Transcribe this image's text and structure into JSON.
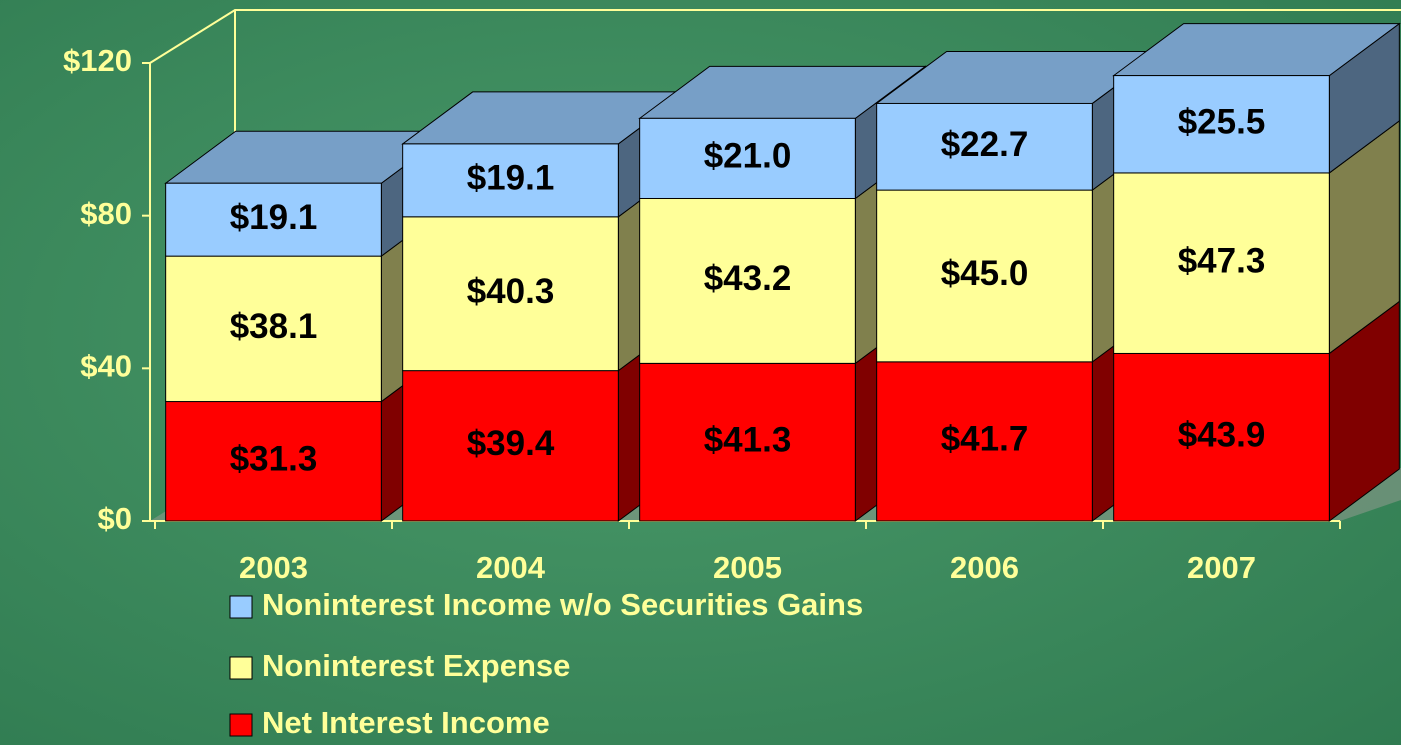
{
  "chart_data": {
    "type": "bar3d_stacked",
    "categories": [
      "2003",
      "2004",
      "2005",
      "2006",
      "2007"
    ],
    "series": [
      {
        "name": "Net Interest Income",
        "color": "#ff0000",
        "values": [
          31.3,
          39.4,
          41.3,
          41.7,
          43.9
        ],
        "value_labels": [
          "$31.3",
          "$39.4",
          "$41.3",
          "$41.7",
          "$43.9"
        ]
      },
      {
        "name": "Noninterest Expense",
        "color": "#ffff99",
        "values": [
          38.1,
          40.3,
          43.2,
          45.0,
          47.3
        ],
        "value_labels": [
          "$38.1",
          "$40.3",
          "$43.2",
          "$45.0",
          "$47.3"
        ]
      },
      {
        "name": "Noninterest Income w/o Securities Gains",
        "color": "#99ccff",
        "values": [
          19.1,
          19.1,
          21.0,
          22.7,
          25.5
        ],
        "value_labels": [
          "$19.1",
          "$19.1",
          "$21.0",
          "$22.7",
          "$25.5"
        ]
      }
    ],
    "ylim": [
      0,
      120
    ],
    "yticks": [
      {
        "value": 0,
        "label": "$0"
      },
      {
        "value": 40,
        "label": "$40"
      },
      {
        "value": 80,
        "label": "$80"
      },
      {
        "value": 120,
        "label": "$120"
      }
    ],
    "grid": false
  }
}
